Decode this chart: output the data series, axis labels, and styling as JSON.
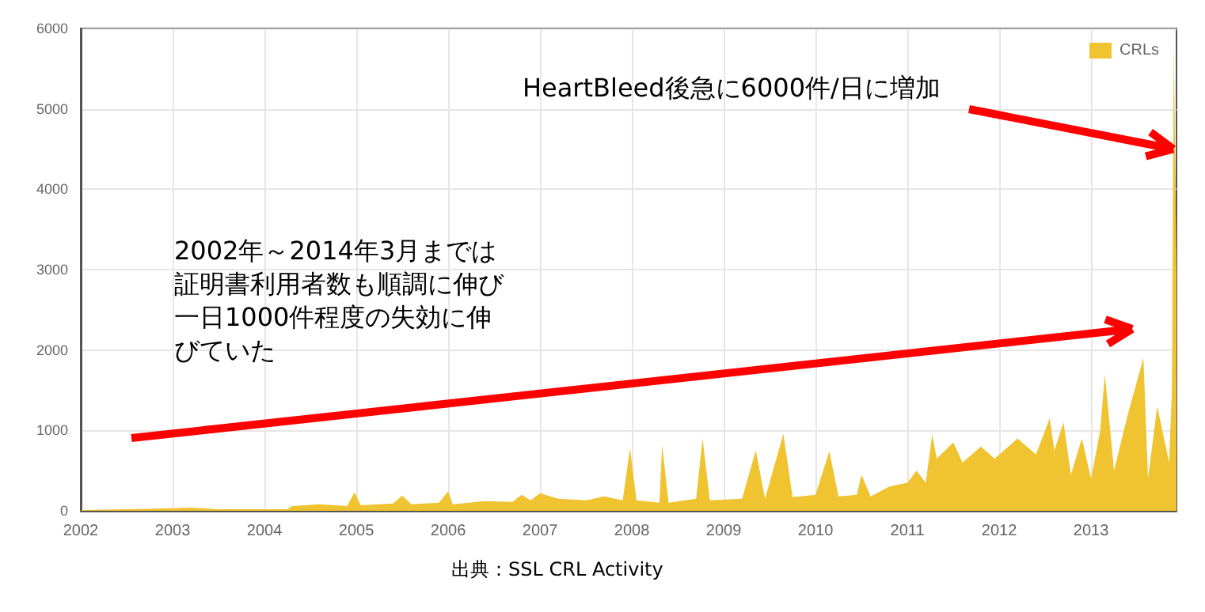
{
  "chart_data": {
    "type": "area",
    "annotations": [
      {
        "text": "HeartBleed後急に6000件/日に増加",
        "x": 2013.93,
        "y": 4500
      },
      "2002年～2014年3月までは証明書利用者数も順調に伸び一日1000件程度の失効に伸びていた",
      "出典：SSL CRL Activity"
    ],
    "x": [
      2002.0,
      2002.5,
      2002.9,
      2003.2,
      2003.5,
      2004.0,
      2004.25,
      2004.3,
      2004.6,
      2004.9,
      2004.98,
      2005.05,
      2005.4,
      2005.5,
      2005.6,
      2005.9,
      2006.0,
      2006.05,
      2006.4,
      2006.7,
      2006.8,
      2006.9,
      2007.0,
      2007.2,
      2007.5,
      2007.7,
      2007.9,
      2007.98,
      2008.05,
      2008.3,
      2008.33,
      2008.4,
      2008.7,
      2008.77,
      2008.85,
      2009.2,
      2009.35,
      2009.45,
      2009.65,
      2009.75,
      2010.0,
      2010.15,
      2010.25,
      2010.45,
      2010.5,
      2010.6,
      2010.8,
      2011.0,
      2011.1,
      2011.2,
      2011.27,
      2011.32,
      2011.5,
      2011.6,
      2011.8,
      2011.95,
      2012.2,
      2012.4,
      2012.55,
      2012.6,
      2012.7,
      2012.78,
      2012.9,
      2013.0,
      2013.1,
      2013.15,
      2013.25,
      2013.4,
      2013.57,
      2013.62,
      2013.72,
      2013.85,
      2013.88,
      2013.9,
      2013.93
    ],
    "series": [
      {
        "name": "CRLs",
        "color": "#f0c330",
        "values": [
          10,
          20,
          30,
          40,
          20,
          20,
          20,
          60,
          80,
          60,
          230,
          70,
          90,
          190,
          80,
          100,
          240,
          80,
          120,
          110,
          200,
          130,
          220,
          150,
          130,
          180,
          130,
          780,
          130,
          100,
          820,
          100,
          150,
          900,
          130,
          150,
          750,
          150,
          960,
          170,
          200,
          740,
          180,
          200,
          450,
          180,
          300,
          350,
          500,
          350,
          950,
          650,
          850,
          600,
          800,
          650,
          900,
          700,
          1150,
          750,
          1100,
          450,
          900,
          400,
          1000,
          1700,
          500,
          1200,
          1900,
          400,
          1300,
          600,
          1500,
          5800,
          3000
        ]
      }
    ],
    "xlim": [
      2002,
      2013.93
    ],
    "xticks": [
      2002,
      2003,
      2004,
      2005,
      2006,
      2007,
      2008,
      2009,
      2010,
      2011,
      2012,
      2013
    ],
    "ylim": [
      0,
      6000
    ],
    "yticks": [
      0,
      1000,
      2000,
      3000,
      4000,
      5000,
      6000
    ],
    "grid": true,
    "legend": "top right",
    "marker": "none"
  }
}
